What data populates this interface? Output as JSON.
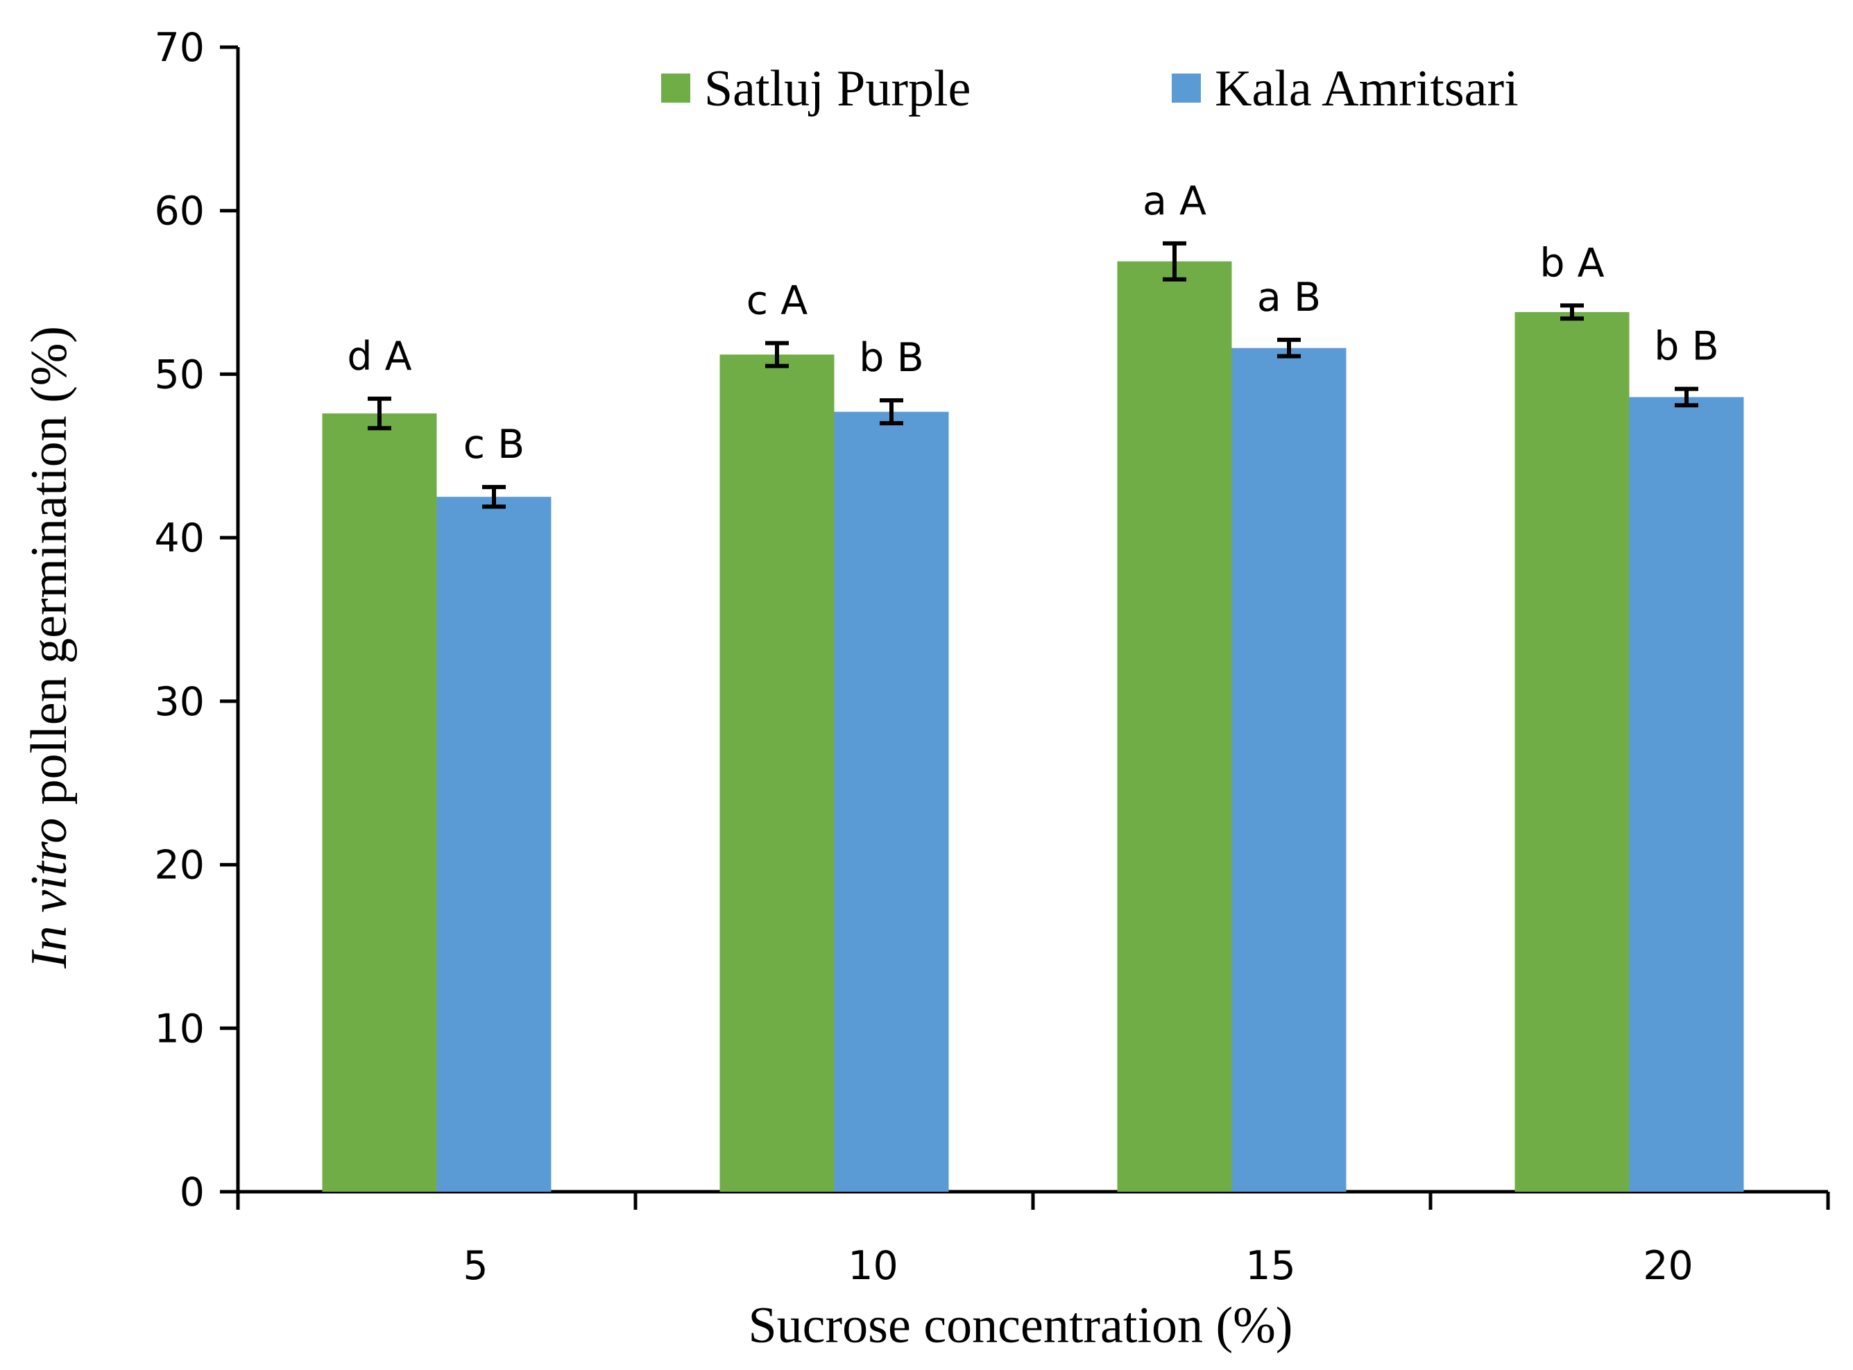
{
  "chart_data": {
    "type": "bar",
    "title": "",
    "categories": [
      "5",
      "10",
      "15",
      "20"
    ],
    "series": [
      {
        "name": "Satluj Purple",
        "color": "#70AD47",
        "values": [
          47.6,
          51.2,
          56.9,
          53.8
        ],
        "errors": [
          0.9,
          0.7,
          1.1,
          0.4
        ],
        "labels": [
          "d A",
          "c A",
          "a A",
          "b A"
        ]
      },
      {
        "name": "Kala Amritsari",
        "color": "#5B9BD5",
        "values": [
          42.5,
          47.7,
          51.6,
          48.6
        ],
        "errors": [
          0.6,
          0.7,
          0.5,
          0.5
        ],
        "labels": [
          "c B",
          "b B",
          "a B",
          "b B"
        ]
      }
    ],
    "xlabel": "Sucrose concentration (%)",
    "ylabel_italic": "In vitro",
    "ylabel_rest": " pollen germination (%)",
    "ylim": [
      0,
      70
    ],
    "yticks": [
      0,
      10,
      20,
      30,
      40,
      50,
      60,
      70
    ],
    "grid": false,
    "legend": "top-center"
  }
}
